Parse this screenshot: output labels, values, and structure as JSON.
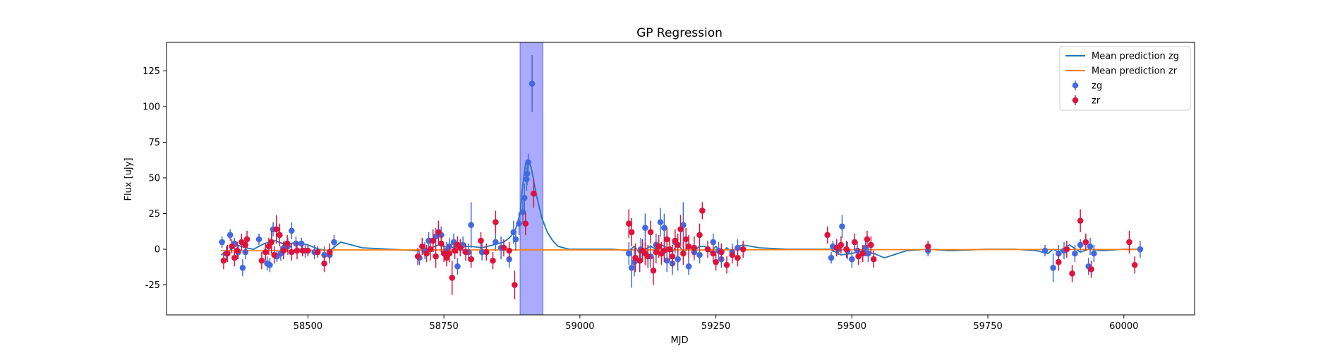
{
  "chart_data": {
    "type": "scatter",
    "title": "GP Regression",
    "xlabel": "MJD",
    "ylabel": "Flux [uJy]",
    "xlim": [
      58240,
      60130
    ],
    "ylim": [
      -46,
      145
    ],
    "xticks": [
      58500,
      58750,
      59000,
      59250,
      59500,
      59750,
      60000
    ],
    "yticks": [
      -25,
      0,
      25,
      50,
      75,
      100,
      125
    ],
    "grid": false,
    "legend_position": "top-right",
    "highlight_span": {
      "x0": 58890,
      "x1": 58932,
      "color": "#aaaaff"
    },
    "colors": {
      "zg_points": "#4169e1",
      "zr_points": "#dc143c",
      "zg_line": "#1f77b4",
      "zr_line": "#ff7f0e",
      "span_edge": "#6666ee"
    },
    "series": [
      {
        "name": "Mean prediction zg",
        "kind": "line",
        "x": [
          58340,
          58355,
          58370,
          58385,
          58400,
          58420,
          58440,
          58460,
          58480,
          58500,
          58520,
          58540,
          58560,
          58600,
          58650,
          58700,
          58720,
          58740,
          58760,
          58780,
          58800,
          58820,
          58840,
          58860,
          58870,
          58880,
          58890,
          58895,
          58900,
          58905,
          58910,
          58915,
          58920,
          58930,
          58940,
          58950,
          58960,
          58970,
          58980,
          59000,
          59030,
          59060,
          59090,
          59100,
          59110,
          59120,
          59130,
          59140,
          59150,
          59160,
          59170,
          59180,
          59190,
          59200,
          59210,
          59220,
          59230,
          59240,
          59250,
          59260,
          59270,
          59280,
          59290,
          59300,
          59330,
          59380,
          59440,
          59460,
          59480,
          59500,
          59520,
          59540,
          59560,
          59600,
          59640,
          59680,
          59750,
          59800,
          59840,
          59860,
          59870,
          59880,
          59900,
          59920,
          59935,
          59960,
          60000,
          60030
        ],
        "y": [
          -4,
          -1,
          3,
          1,
          0,
          4,
          6,
          3,
          5,
          3,
          0,
          -1,
          5,
          1,
          0,
          -1,
          0,
          3,
          1,
          2,
          2,
          1,
          3,
          5,
          8,
          12,
          25,
          45,
          60,
          61,
          58,
          48,
          38,
          22,
          12,
          6,
          2,
          1,
          0,
          0,
          0,
          0,
          -1,
          2,
          -3,
          0,
          2,
          0,
          3,
          1,
          -2,
          4,
          -2,
          2,
          -1,
          2,
          2,
          -2,
          2,
          -3,
          1,
          -2,
          2,
          3,
          1,
          0,
          0,
          0,
          -4,
          -3,
          -1,
          -3,
          -6,
          -1,
          0,
          -1,
          0,
          0,
          -1,
          -3,
          0,
          -2,
          3,
          -2,
          0,
          -1,
          0,
          0
        ]
      },
      {
        "name": "Mean prediction zr",
        "kind": "line",
        "x": [
          58340,
          58450,
          58550,
          58700,
          58850,
          58900,
          58950,
          59100,
          59250,
          59400,
          59500,
          59640,
          59800,
          59950,
          60030
        ],
        "y": [
          -1,
          -1,
          -0.5,
          -0.5,
          -0.5,
          -0.5,
          -0.5,
          -0.5,
          -0.5,
          -0.3,
          -0.3,
          -0.3,
          -0.2,
          -0.2,
          -0.2
        ]
      },
      {
        "name": "zg",
        "kind": "errorbar",
        "points": [
          [
            58342,
            5,
            4
          ],
          [
            58350,
            -3,
            5
          ],
          [
            58357,
            10,
            4
          ],
          [
            58365,
            4,
            4
          ],
          [
            58372,
            -2,
            5
          ],
          [
            58380,
            -13,
            6
          ],
          [
            58385,
            -2,
            5
          ],
          [
            58410,
            7,
            4
          ],
          [
            58425,
            -10,
            5
          ],
          [
            58430,
            -11,
            5
          ],
          [
            58436,
            14,
            5
          ],
          [
            58443,
            -5,
            4
          ],
          [
            58450,
            -3,
            5
          ],
          [
            58456,
            1,
            5
          ],
          [
            58463,
            2,
            6
          ],
          [
            58470,
            13,
            6
          ],
          [
            58478,
            4,
            5
          ],
          [
            58488,
            4,
            4
          ],
          [
            58495,
            -1,
            5
          ],
          [
            58512,
            -2,
            5
          ],
          [
            58530,
            -4,
            6
          ],
          [
            58540,
            -4,
            6
          ],
          [
            58548,
            5,
            5
          ],
          [
            58705,
            -6,
            5
          ],
          [
            58715,
            -1,
            6
          ],
          [
            58722,
            6,
            6
          ],
          [
            58735,
            9,
            6
          ],
          [
            58745,
            10,
            6
          ],
          [
            58755,
            -1,
            6
          ],
          [
            58760,
            2,
            6
          ],
          [
            58768,
            5,
            6
          ],
          [
            58775,
            -12,
            6
          ],
          [
            58785,
            3,
            6
          ],
          [
            58795,
            -2,
            6
          ],
          [
            58800,
            17,
            16
          ],
          [
            58820,
            -2,
            6
          ],
          [
            58845,
            5,
            6
          ],
          [
            58855,
            1,
            8
          ],
          [
            58870,
            -7,
            6
          ],
          [
            58878,
            12,
            8
          ],
          [
            58882,
            7,
            8
          ],
          [
            58888,
            18,
            8
          ],
          [
            58895,
            26,
            8
          ],
          [
            58898,
            36,
            10
          ],
          [
            58902,
            49,
            8
          ],
          [
            58903,
            53,
            8
          ],
          [
            58905,
            61,
            6
          ],
          [
            58912,
            116,
            20
          ],
          [
            59090,
            -3,
            8
          ],
          [
            59095,
            -13,
            14
          ],
          [
            59100,
            -9,
            10
          ],
          [
            59112,
            0,
            8
          ],
          [
            59120,
            15,
            10
          ],
          [
            59130,
            -5,
            8
          ],
          [
            59140,
            3,
            8
          ],
          [
            59148,
            19,
            10
          ],
          [
            59155,
            15,
            10
          ],
          [
            59160,
            -8,
            8
          ],
          [
            59170,
            -10,
            8
          ],
          [
            59175,
            5,
            8
          ],
          [
            59180,
            -7,
            8
          ],
          [
            59190,
            17,
            16
          ],
          [
            59200,
            -12,
            6
          ],
          [
            59210,
            -2,
            6
          ],
          [
            59220,
            -4,
            6
          ],
          [
            59245,
            5,
            6
          ],
          [
            59255,
            -1,
            6
          ],
          [
            59260,
            -7,
            6
          ],
          [
            59280,
            -2,
            6
          ],
          [
            59290,
            1,
            6
          ],
          [
            59462,
            -6,
            4
          ],
          [
            59465,
            2,
            4
          ],
          [
            59475,
            0,
            4
          ],
          [
            59482,
            16,
            8
          ],
          [
            59492,
            -1,
            6
          ],
          [
            59500,
            -7,
            6
          ],
          [
            59510,
            -1,
            6
          ],
          [
            59525,
            1,
            6
          ],
          [
            59530,
            -3,
            6
          ],
          [
            59640,
            -1,
            4
          ],
          [
            59855,
            -1,
            4
          ],
          [
            59870,
            -13,
            10
          ],
          [
            59880,
            -3,
            6
          ],
          [
            59890,
            -1,
            6
          ],
          [
            59910,
            -3,
            6
          ],
          [
            59920,
            3,
            4
          ],
          [
            59935,
            -12,
            6
          ],
          [
            59938,
            2,
            6
          ],
          [
            59945,
            -3,
            6
          ],
          [
            60030,
            0,
            6
          ]
        ]
      },
      {
        "name": "zr",
        "kind": "errorbar",
        "points": [
          [
            58345,
            -8,
            6
          ],
          [
            58352,
            -3,
            6
          ],
          [
            58360,
            2,
            5
          ],
          [
            58365,
            -6,
            6
          ],
          [
            58370,
            -1,
            6
          ],
          [
            58378,
            5,
            6
          ],
          [
            58385,
            3,
            6
          ],
          [
            58388,
            7,
            6
          ],
          [
            58415,
            -8,
            6
          ],
          [
            58422,
            -2,
            6
          ],
          [
            58428,
            2,
            6
          ],
          [
            58433,
            5,
            8
          ],
          [
            58438,
            -4,
            6
          ],
          [
            58442,
            14,
            10
          ],
          [
            58448,
            10,
            8
          ],
          [
            58455,
            -1,
            6
          ],
          [
            58462,
            4,
            6
          ],
          [
            58470,
            -2,
            6
          ],
          [
            58480,
            -1,
            6
          ],
          [
            58490,
            -1,
            4
          ],
          [
            58500,
            -1,
            4
          ],
          [
            58518,
            -2,
            4
          ],
          [
            58530,
            -10,
            6
          ],
          [
            58540,
            -2,
            6
          ],
          [
            58702,
            -5,
            6
          ],
          [
            58710,
            2,
            6
          ],
          [
            58718,
            -3,
            6
          ],
          [
            58725,
            0,
            8
          ],
          [
            58730,
            6,
            8
          ],
          [
            58735,
            -5,
            8
          ],
          [
            58740,
            12,
            8
          ],
          [
            58745,
            4,
            6
          ],
          [
            58750,
            -3,
            6
          ],
          [
            58755,
            -6,
            6
          ],
          [
            58760,
            -3,
            6
          ],
          [
            58765,
            -20,
            12
          ],
          [
            58770,
            -1,
            6
          ],
          [
            58775,
            3,
            6
          ],
          [
            58780,
            1,
            6
          ],
          [
            58790,
            -2,
            6
          ],
          [
            58800,
            -7,
            6
          ],
          [
            58818,
            6,
            6
          ],
          [
            58828,
            -2,
            6
          ],
          [
            58840,
            -8,
            6
          ],
          [
            58845,
            19,
            8
          ],
          [
            58860,
            1,
            6
          ],
          [
            58870,
            -1,
            6
          ],
          [
            58880,
            -25,
            10
          ],
          [
            58900,
            18,
            8
          ],
          [
            58915,
            39,
            10
          ],
          [
            59090,
            18,
            10
          ],
          [
            59095,
            12,
            10
          ],
          [
            59102,
            -6,
            10
          ],
          [
            59110,
            -8,
            8
          ],
          [
            59115,
            -1,
            8
          ],
          [
            59120,
            -3,
            8
          ],
          [
            59125,
            -5,
            8
          ],
          [
            59130,
            12,
            8
          ],
          [
            59135,
            -15,
            10
          ],
          [
            59140,
            -2,
            8
          ],
          [
            59145,
            2,
            8
          ],
          [
            59150,
            -3,
            8
          ],
          [
            59155,
            -1,
            8
          ],
          [
            59160,
            7,
            8
          ],
          [
            59165,
            0,
            8
          ],
          [
            59170,
            -5,
            8
          ],
          [
            59175,
            6,
            8
          ],
          [
            59180,
            3,
            8
          ],
          [
            59185,
            14,
            10
          ],
          [
            59190,
            -3,
            8
          ],
          [
            59195,
            7,
            8
          ],
          [
            59200,
            2,
            8
          ],
          [
            59210,
            1,
            8
          ],
          [
            59220,
            10,
            8
          ],
          [
            59225,
            27,
            6
          ],
          [
            59235,
            0,
            6
          ],
          [
            59245,
            -3,
            6
          ],
          [
            59250,
            -9,
            6
          ],
          [
            59260,
            -2,
            6
          ],
          [
            59270,
            -11,
            6
          ],
          [
            59280,
            -4,
            6
          ],
          [
            59290,
            -6,
            6
          ],
          [
            59300,
            0,
            6
          ],
          [
            59455,
            10,
            6
          ],
          [
            59472,
            1,
            6
          ],
          [
            59480,
            3,
            6
          ],
          [
            59490,
            0,
            6
          ],
          [
            59505,
            5,
            6
          ],
          [
            59512,
            -5,
            6
          ],
          [
            59520,
            -3,
            6
          ],
          [
            59528,
            7,
            6
          ],
          [
            59535,
            3,
            6
          ],
          [
            59540,
            -7,
            6
          ],
          [
            59640,
            2,
            4
          ],
          [
            59880,
            -9,
            6
          ],
          [
            59895,
            0,
            6
          ],
          [
            59905,
            -17,
            6
          ],
          [
            59920,
            20,
            8
          ],
          [
            59930,
            5,
            6
          ],
          [
            59940,
            -14,
            6
          ],
          [
            60010,
            5,
            8
          ],
          [
            60020,
            -11,
            6
          ]
        ]
      }
    ]
  }
}
